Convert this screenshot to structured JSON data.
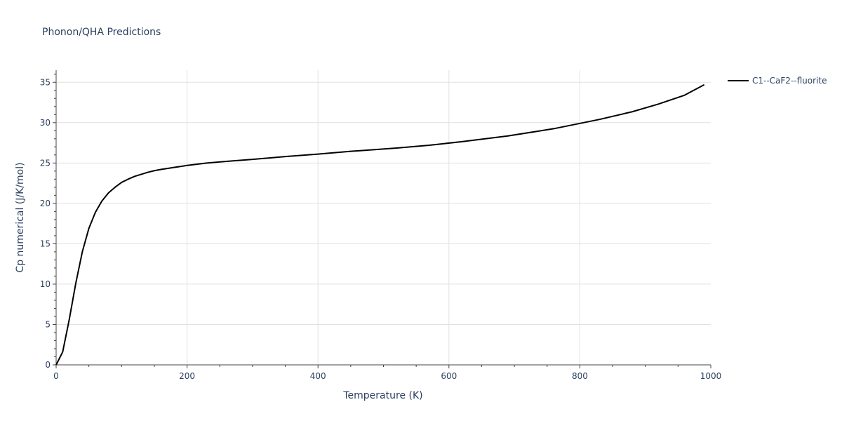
{
  "chart_data": {
    "type": "line",
    "title": "Phonon/QHA Predictions",
    "xlabel": "Temperature (K)",
    "ylabel": "Cp numerical (J/K/mol)",
    "xlim": [
      0,
      1000
    ],
    "ylim": [
      0,
      36.5
    ],
    "x_ticks": [
      0,
      200,
      400,
      600,
      800,
      1000
    ],
    "y_ticks": [
      0,
      5,
      10,
      15,
      20,
      25,
      30,
      35
    ],
    "grid": true,
    "legend_position": "top-right outside",
    "series": [
      {
        "name": "C1--CaF2--fluorite",
        "color": "#000000",
        "x": [
          0,
          10,
          20,
          30,
          40,
          50,
          60,
          70,
          80,
          90,
          100,
          110,
          120,
          130,
          140,
          150,
          160,
          180,
          200,
          230,
          260,
          300,
          350,
          400,
          450,
          520,
          570,
          620,
          690,
          760,
          830,
          880,
          920,
          960,
          990
        ],
        "y": [
          0,
          1.6,
          5.6,
          10.1,
          14.0,
          16.9,
          18.9,
          20.3,
          21.3,
          22.0,
          22.6,
          23.0,
          23.35,
          23.6,
          23.85,
          24.05,
          24.2,
          24.45,
          24.7,
          25.0,
          25.2,
          25.45,
          25.8,
          26.1,
          26.45,
          26.85,
          27.2,
          27.65,
          28.35,
          29.25,
          30.4,
          31.35,
          32.3,
          33.4,
          34.7
        ]
      }
    ]
  }
}
